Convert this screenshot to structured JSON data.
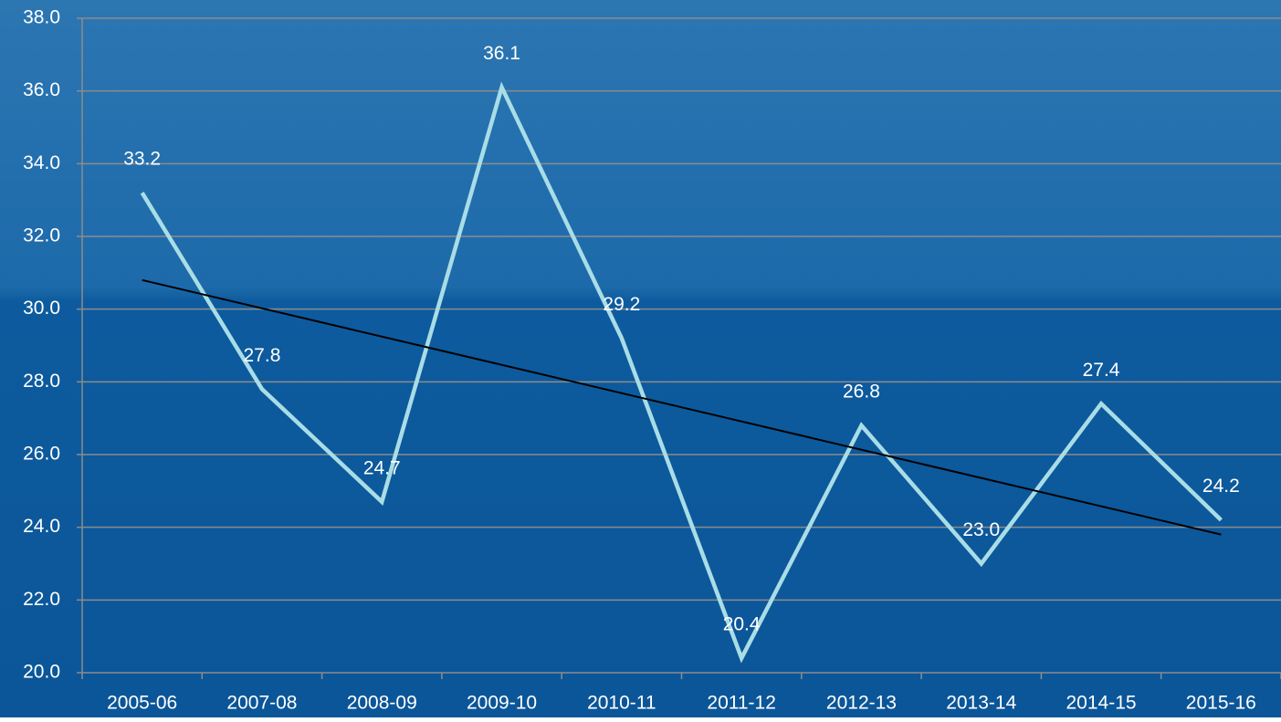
{
  "chart_data": {
    "type": "line",
    "categories": [
      "2005-06",
      "2007-08",
      "2008-09",
      "2009-10",
      "2010-11",
      "2011-12",
      "2012-13",
      "2013-14",
      "2014-15",
      "2015-16"
    ],
    "series": [
      {
        "color": "#a9dde6",
        "values": [
          33.2,
          27.8,
          24.7,
          36.1,
          29.2,
          20.4,
          26.8,
          23.0,
          27.4,
          24.2
        ],
        "value_labels": [
          "33.2",
          "27.8",
          "24.7",
          "36.1",
          "29.2",
          "20.4",
          "26.8",
          "23.0",
          "27.4",
          "24.2"
        ]
      }
    ],
    "trendline": {
      "color": "#000000",
      "values": [
        30.8,
        23.8
      ]
    },
    "ylim": [
      20,
      38
    ],
    "yticks": [
      {
        "value": 20,
        "label": "20.0"
      },
      {
        "value": 22,
        "label": "22.0"
      },
      {
        "value": 24,
        "label": "24.0"
      },
      {
        "value": 26,
        "label": "26.0"
      },
      {
        "value": 28,
        "label": "28.0"
      },
      {
        "value": 30,
        "label": "30.0"
      },
      {
        "value": 32,
        "label": "32.0"
      },
      {
        "value": 34,
        "label": "34.0"
      },
      {
        "value": 36,
        "label": "36.0"
      },
      {
        "value": 38,
        "label": "38.0"
      }
    ],
    "grid": true
  }
}
